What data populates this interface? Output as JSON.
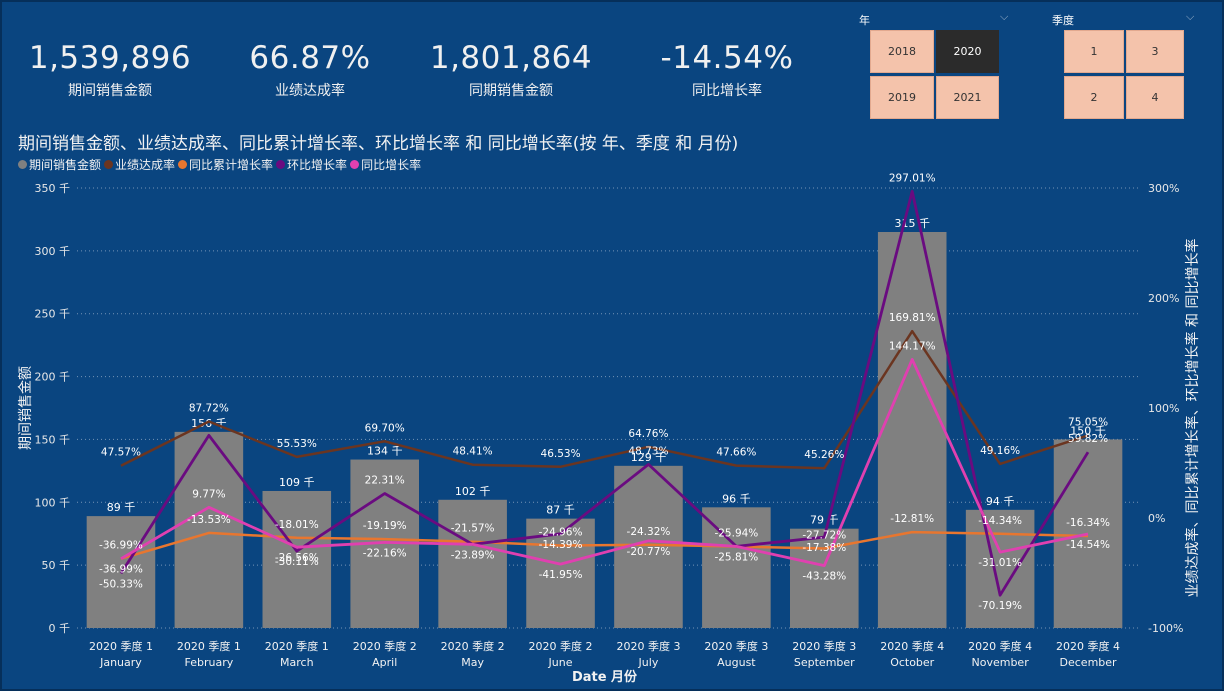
{
  "kpis": [
    {
      "value": "1,539,896",
      "label": "期间销售金额"
    },
    {
      "value": "66.87%",
      "label": "业绩达成率"
    },
    {
      "value": "1,801,864",
      "label": "同期销售金额"
    },
    {
      "value": "-14.54%",
      "label": "同比增长率"
    }
  ],
  "slicers": {
    "year": {
      "title": "年",
      "options": [
        "2018",
        "2020",
        "2019",
        "2021"
      ],
      "selected": "2020"
    },
    "quarter": {
      "title": "季度",
      "options": [
        "1",
        "3",
        "2",
        "4"
      ],
      "selected": ""
    }
  },
  "colors": {
    "background": "#0a4580",
    "bar": "#808080",
    "达成率": "#6b3520",
    "累计": "#e8762f",
    "环比": "#6a0b80",
    "同比": "#e040b0"
  },
  "chart_data": {
    "type": "bar",
    "title": "期间销售金额、业绩达成率、同比累计增长率、环比增长率 和 同比增长率(按 年、季度 和 月份)",
    "xlabel": "Date 月份",
    "ylabel": "期间销售金额",
    "y2label": "业绩达成率、同比累计增长率、环比增长率 和 同比增长率",
    "ylim": [
      0,
      350000
    ],
    "y2lim": [
      -100,
      300
    ],
    "y_ticks": [
      "0 千",
      "50 千",
      "100 千",
      "150 千",
      "200 千",
      "250 千",
      "300 千",
      "350 千"
    ],
    "y2_ticks": [
      "-100%",
      "0%",
      "100%",
      "200%",
      "300%"
    ],
    "categories_top": [
      "2020 季度 1",
      "2020 季度 1",
      "2020 季度 1",
      "2020 季度 2",
      "2020 季度 2",
      "2020 季度 2",
      "2020 季度 3",
      "2020 季度 3",
      "2020 季度 3",
      "2020 季度 4",
      "2020 季度 4",
      "2020 季度 4"
    ],
    "categories": [
      "January",
      "February",
      "March",
      "April",
      "May",
      "June",
      "July",
      "August",
      "September",
      "October",
      "November",
      "December"
    ],
    "bars": {
      "name": "期间销售金额",
      "values": [
        89000,
        156000,
        109000,
        134000,
        102000,
        87000,
        129000,
        96000,
        79000,
        315000,
        94000,
        150000
      ],
      "labels": [
        "89 千",
        "156 千",
        "109 千",
        "134 千",
        "102 千",
        "87 千",
        "129 千",
        "96 千",
        "79 千",
        "315 千",
        "94 千",
        "150 千"
      ]
    },
    "series": [
      {
        "name": "业绩达成率",
        "values": [
          47.57,
          87.72,
          55.53,
          69.7,
          48.41,
          46.53,
          64.76,
          47.66,
          45.26,
          169.81,
          49.16,
          75.05
        ],
        "labels": [
          "47.57%",
          "87.72%",
          "55.53%",
          "69.70%",
          "48.41%",
          "46.53%",
          "64.76%",
          "47.66%",
          "45.26%",
          "169.81%",
          "49.16%",
          "75.05%"
        ]
      },
      {
        "name": "同比累计增长率",
        "values": [
          -36.99,
          -13.53,
          -18.01,
          -19.19,
          -21.57,
          -24.96,
          -24.32,
          -25.94,
          -27.72,
          -12.81,
          -14.34,
          -16.34
        ],
        "labels": [
          "-36.99%",
          "-13.53%",
          "-18.01%",
          "-19.19%",
          "-21.57%",
          "-24.96%",
          "-24.32%",
          "-25.94%",
          "-27.72%",
          "-12.81%",
          "-14.34%",
          "-16.34%"
        ]
      },
      {
        "name": "环比增长率",
        "values": [
          -50.33,
          75.05,
          -30.11,
          22.31,
          -23.89,
          -14.39,
          48.73,
          -25.81,
          -17.38,
          297.01,
          -70.19,
          59.82
        ],
        "labels": [
          "-50.33%",
          "",
          "-30.11%",
          "22.31%",
          "-23.89%",
          "-14.39%",
          "48.73%",
          "-25.81%",
          "-17.38%",
          "297.01%",
          "-70.19%",
          "59.82%"
        ]
      },
      {
        "name": "同比增长率",
        "values": [
          -36.99,
          9.77,
          -26.56,
          -22.16,
          -23.89,
          -41.95,
          -20.77,
          -25.81,
          -43.28,
          144.17,
          -31.01,
          -14.54
        ],
        "labels": [
          "-36.99%",
          "9.77%",
          "-26.56%",
          "-22.16%",
          "",
          "-41.95%",
          "-20.77%",
          "",
          "-43.28%",
          "144.17%",
          "-31.01%",
          "-14.54%"
        ]
      }
    ],
    "grid": true,
    "legend": "top-left"
  }
}
